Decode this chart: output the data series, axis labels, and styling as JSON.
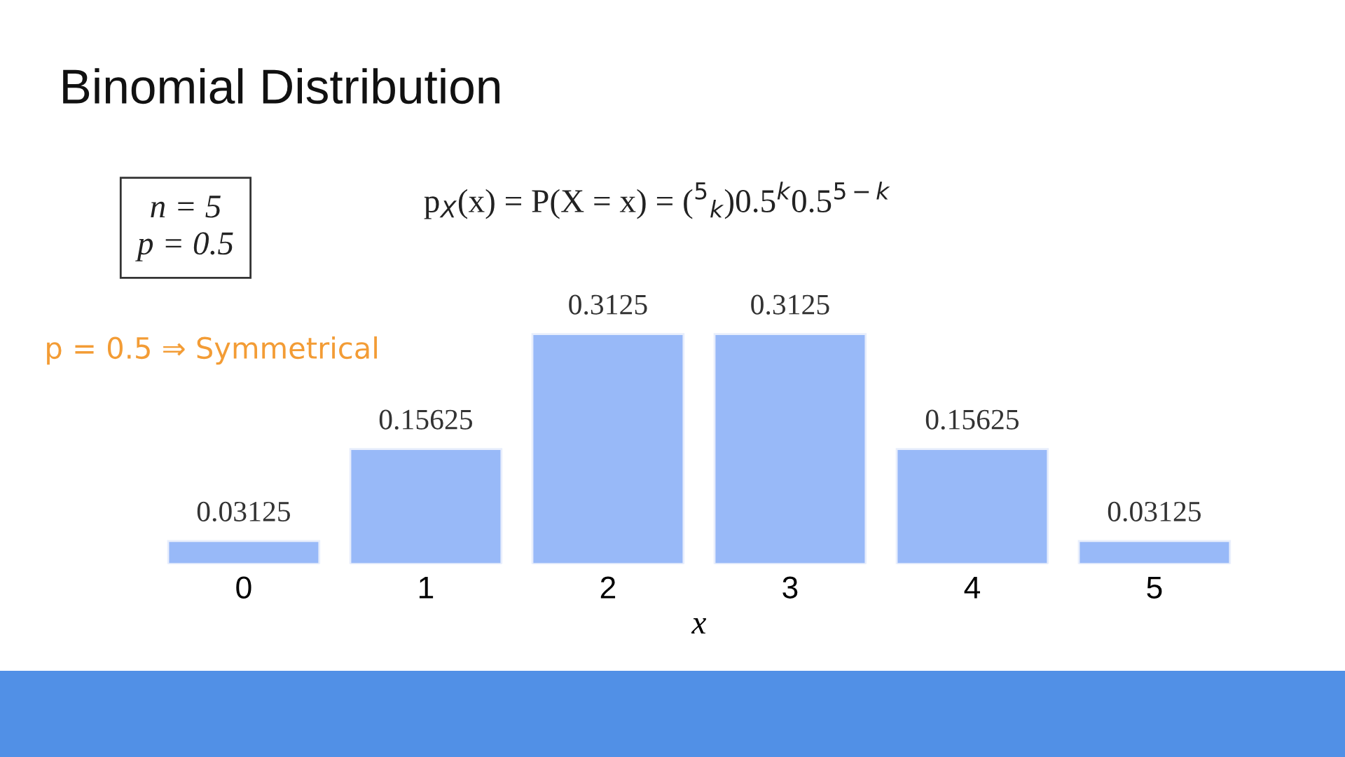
{
  "chart_data": {
    "type": "bar",
    "title": "Binomial Distribution",
    "xlabel": "x",
    "categories": [
      "0",
      "1",
      "2",
      "3",
      "4",
      "5"
    ],
    "values": [
      0.03125,
      0.15625,
      0.3125,
      0.3125,
      0.15625,
      0.03125
    ],
    "color": "#98b9f8",
    "data_labels": true,
    "grid": false,
    "legend": false,
    "annotations": [
      "n = 5\np = 0.5",
      "p$_{X}$(x) = P(X = x) = ($^{5}$$_{k}$)0.5$^{k}$0.5$^{5−k}$",
      "p = 0.5 ⇒ Symmetrical"
    ]
  }
}
